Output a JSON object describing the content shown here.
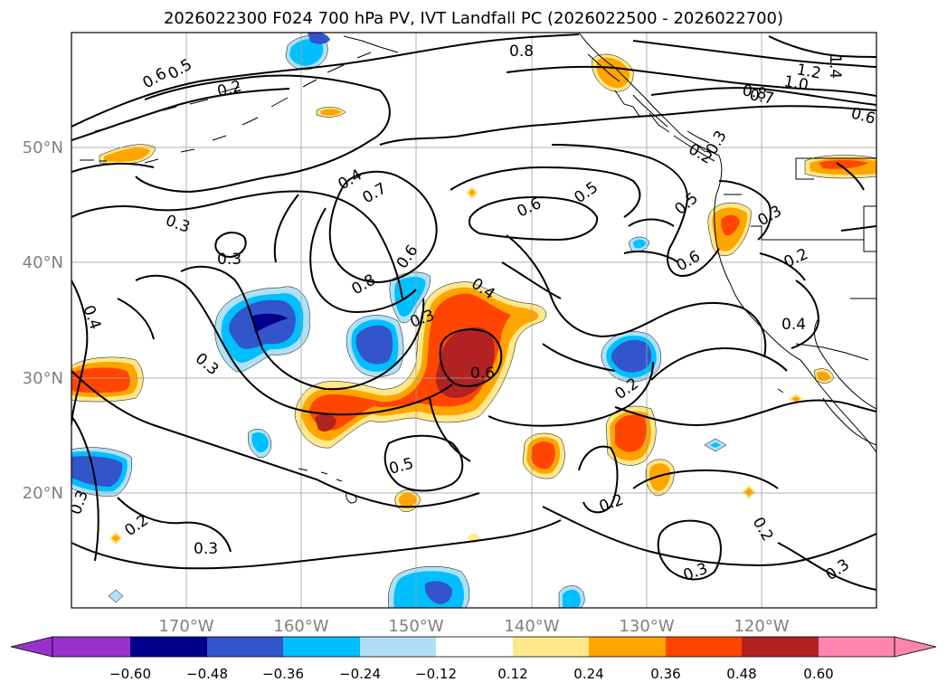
{
  "title": "2026022300 F024 700 hPa PV, IVT Landfall PC (2026022500 - 2026022700)",
  "map": {
    "lon_labels": [
      "170°W",
      "160°W",
      "150°W",
      "140°W",
      "130°W",
      "120°W"
    ],
    "lat_labels": [
      "50°N",
      "40°N",
      "30°N",
      "20°N"
    ],
    "contour_labels": [
      "0.6",
      "0.5",
      "0.2",
      "0.8",
      "0.8",
      "0.7",
      "1.0",
      "1.2",
      "1.4",
      "0.6",
      "0.3",
      "0.4",
      "0.7",
      "0.6",
      "0.5",
      "0.5",
      "0.6",
      "0.3",
      "0.2",
      "0.3",
      "0.3",
      "0.8",
      "0.6",
      "0.4",
      "0.4",
      "0.3",
      "0.4",
      "0.2",
      "0.6",
      "0.3",
      "0.5",
      "0.2",
      "0.2",
      "0.3",
      "0.2",
      "0.3",
      "0.3",
      "0.2",
      "0.3"
    ]
  },
  "colorbar": {
    "ticks": [
      "−0.60",
      "−0.48",
      "−0.36",
      "−0.24",
      "−0.12",
      "0.12",
      "0.24",
      "0.36",
      "0.48",
      "0.60"
    ],
    "colors": [
      "#9932cc",
      "#00008b",
      "#3355cc",
      "#00bfff",
      "#b0e0f6",
      "#ffffff",
      "#ffe88a",
      "#ffa500",
      "#ff4500",
      "#b22222",
      "#ff85b0"
    ]
  }
}
